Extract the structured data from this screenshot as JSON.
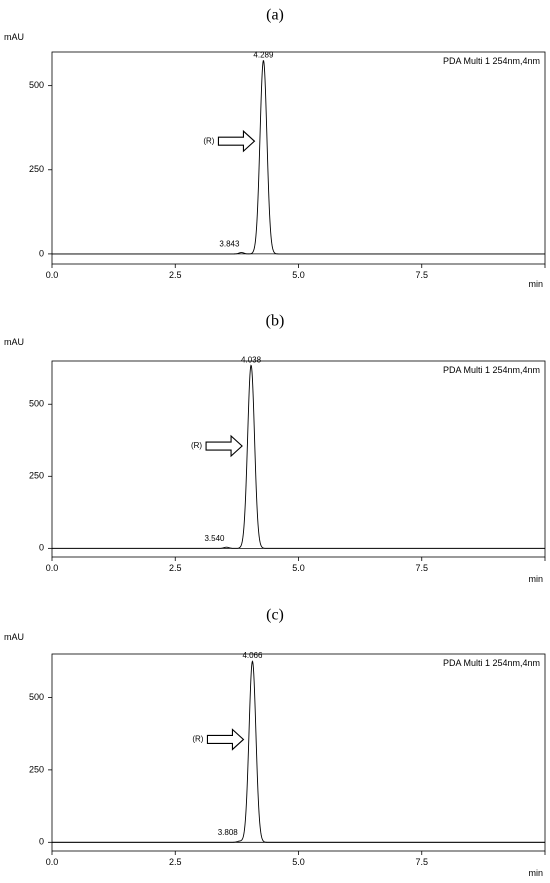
{
  "chart_data": [
    {
      "type": "line",
      "panel_label": "(a)",
      "ylabel": "mAU",
      "xlabel": "min",
      "detector": "PDA Multi 1 254nm,4nm",
      "xlim": [
        0,
        10
      ],
      "ylim": [
        -30,
        600
      ],
      "xticks": [
        0.0,
        2.5,
        5.0,
        7.5
      ],
      "xtick_labels": [
        "0.0",
        "2.5",
        "5.0",
        "7.5"
      ],
      "yticks": [
        0,
        250,
        500
      ],
      "ytick_labels": [
        "0",
        "250",
        "500"
      ],
      "peaks": [
        {
          "rt": 3.843,
          "label": "3.843",
          "height": 4,
          "sigma": 0.05
        },
        {
          "rt": 4.289,
          "label": "4.289",
          "height": 575,
          "sigma": 0.07
        }
      ],
      "arrow": {
        "label": "(R)",
        "y": 335
      }
    },
    {
      "type": "line",
      "panel_label": "(b)",
      "ylabel": "mAU",
      "xlabel": "min",
      "detector": "PDA Multi 1 254nm,4nm",
      "xlim": [
        0,
        10
      ],
      "ylim": [
        -30,
        650
      ],
      "xticks": [
        0.0,
        2.5,
        5.0,
        7.5
      ],
      "xtick_labels": [
        "0.0",
        "2.5",
        "5.0",
        "7.5"
      ],
      "yticks": [
        0,
        250,
        500
      ],
      "ytick_labels": [
        "0",
        "250",
        "500"
      ],
      "peaks": [
        {
          "rt": 3.54,
          "label": "3.540",
          "height": 4,
          "sigma": 0.05
        },
        {
          "rt": 4.038,
          "label": "4.038",
          "height": 635,
          "sigma": 0.07
        }
      ],
      "arrow": {
        "label": "(R)",
        "y": 355
      }
    },
    {
      "type": "line",
      "panel_label": "(c)",
      "ylabel": "mAU",
      "xlabel": "min",
      "detector": "PDA Multi 1 254nm,4nm",
      "xlim": [
        0,
        10
      ],
      "ylim": [
        -30,
        650
      ],
      "xticks": [
        0.0,
        2.5,
        5.0,
        7.5
      ],
      "xtick_labels": [
        "0.0",
        "2.5",
        "5.0",
        "7.5"
      ],
      "yticks": [
        0,
        250,
        500
      ],
      "ytick_labels": [
        "0",
        "250",
        "500"
      ],
      "peaks": [
        {
          "rt": 3.808,
          "label": "3.808",
          "height": 4,
          "sigma": 0.05
        },
        {
          "rt": 4.066,
          "label": "4.066",
          "height": 625,
          "sigma": 0.07
        }
      ],
      "arrow": {
        "label": "(R)",
        "y": 355
      }
    }
  ]
}
